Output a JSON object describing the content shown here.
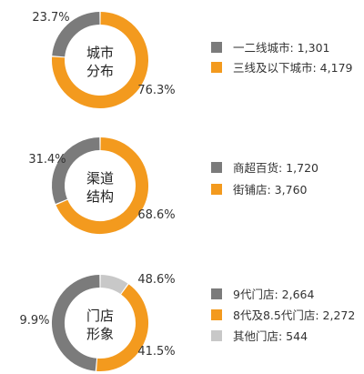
{
  "colors": {
    "gray": "#7b7b7b",
    "orange": "#f39a1e",
    "lightgray": "#c8c8c8"
  },
  "chart_data": [
    {
      "type": "pie",
      "center_label": [
        "城市",
        "分布"
      ],
      "categories": [
        "一二线城市",
        "三线及以下城市"
      ],
      "values": [
        1301,
        4179
      ],
      "percent_labels": [
        "23.7%",
        "76.3%"
      ],
      "legend": [
        "一二线城市: 1,301",
        "三线及以下城市: 4,179"
      ],
      "colors": [
        "#7b7b7b",
        "#f39a1e"
      ]
    },
    {
      "type": "pie",
      "center_label": [
        "渠道",
        "结构"
      ],
      "categories": [
        "商超百货",
        "街铺店"
      ],
      "values": [
        1720,
        3760
      ],
      "percent_labels": [
        "31.4%",
        "68.6%"
      ],
      "legend": [
        "商超百货: 1,720",
        "街铺店: 3,760"
      ],
      "colors": [
        "#7b7b7b",
        "#f39a1e"
      ]
    },
    {
      "type": "pie",
      "center_label": [
        "门店",
        "形象"
      ],
      "categories": [
        "9代门店",
        "8代及8.5代门店",
        "其他门店"
      ],
      "values": [
        2664,
        2272,
        544
      ],
      "percent_labels": [
        "48.6%",
        "41.5%",
        "9.9%"
      ],
      "legend": [
        "9代门店: 2,664",
        "8代及8.5代门店: 2,272",
        "其他门店: 544"
      ],
      "colors": [
        "#7b7b7b",
        "#f39a1e",
        "#c8c8c8"
      ]
    }
  ]
}
